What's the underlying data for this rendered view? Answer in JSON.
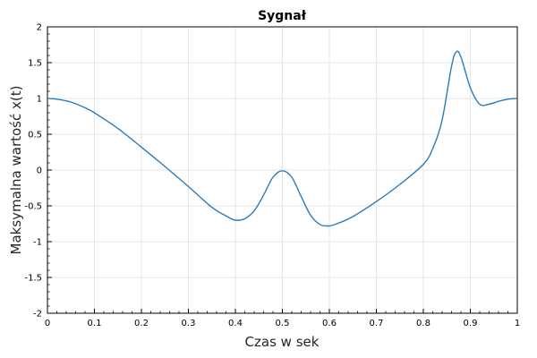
{
  "chart_data": {
    "type": "line",
    "title": "Sygnał",
    "xlabel": "Czas w sek",
    "ylabel": "Maksymalna wartość x(t)",
    "xlim": [
      0,
      1
    ],
    "ylim": [
      -2,
      2
    ],
    "xticks": [
      0,
      0.1,
      0.2,
      0.3,
      0.4,
      0.5,
      0.6,
      0.7,
      0.8,
      0.9,
      1
    ],
    "xtick_labels": [
      "0",
      "0.1",
      "0.2",
      "0.3",
      "0.4",
      "0.5",
      "0.6",
      "0.7",
      "0.8",
      "0.9",
      "1"
    ],
    "yticks": [
      -2,
      -1.5,
      -1,
      -0.5,
      0,
      0.5,
      1,
      1.5,
      2
    ],
    "ytick_labels": [
      "-2",
      "-1.5",
      "-1",
      "-0.5",
      "0",
      "0.5",
      "1",
      "1.5",
      "2"
    ],
    "grid": true,
    "line_color": "#2b7bba",
    "series": [
      {
        "x": [
          0,
          0.02,
          0.05,
          0.08,
          0.1,
          0.15,
          0.2,
          0.25,
          0.3,
          0.35,
          0.38,
          0.4,
          0.42,
          0.44,
          0.46,
          0.48,
          0.5,
          0.52,
          0.54,
          0.56,
          0.58,
          0.6,
          0.62,
          0.65,
          0.7,
          0.75,
          0.8,
          0.82,
          0.84,
          0.86,
          0.87,
          0.88,
          0.9,
          0.92,
          0.94,
          0.96,
          0.98,
          1
        ],
        "y": [
          1.0,
          0.99,
          0.95,
          0.87,
          0.8,
          0.58,
          0.32,
          0.05,
          -0.23,
          -0.52,
          -0.64,
          -0.7,
          -0.68,
          -0.57,
          -0.35,
          -0.1,
          -0.01,
          -0.1,
          -0.37,
          -0.63,
          -0.76,
          -0.78,
          -0.74,
          -0.65,
          -0.44,
          -0.2,
          0.08,
          0.3,
          0.7,
          1.45,
          1.65,
          1.58,
          1.15,
          0.92,
          0.92,
          0.96,
          0.99,
          1.0
        ]
      }
    ]
  }
}
